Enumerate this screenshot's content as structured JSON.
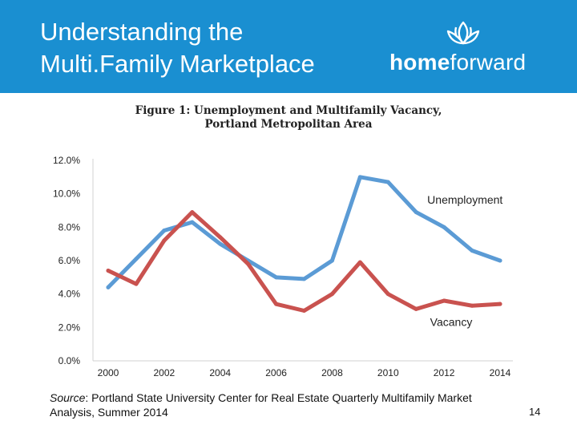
{
  "header": {
    "title_line1": "Understanding the",
    "title_line2": "Multi.Family Marketplace",
    "logo": {
      "word_bold": "home",
      "word_light": "forward",
      "icon": "lotus-flower-icon"
    }
  },
  "figure": {
    "title_line1": "Figure 1: Unemployment and Multifamily Vacancy,",
    "title_line2": "Portland Metropolitan Area"
  },
  "chart_data": {
    "type": "line",
    "x": [
      2000,
      2001,
      2002,
      2003,
      2004,
      2005,
      2006,
      2007,
      2008,
      2009,
      2010,
      2011,
      2012,
      2013,
      2014
    ],
    "series": [
      {
        "name": "Unemployment",
        "color": "#5b9bd5",
        "values": [
          4.4,
          6.1,
          7.8,
          8.3,
          7.0,
          6.0,
          5.0,
          4.9,
          6.0,
          11.0,
          10.7,
          8.9,
          8.0,
          6.6,
          6.0
        ]
      },
      {
        "name": "Vacancy",
        "color": "#c9524f",
        "values": [
          5.4,
          4.6,
          7.2,
          8.9,
          7.4,
          5.8,
          3.4,
          3.0,
          4.0,
          5.9,
          4.0,
          3.1,
          3.6,
          3.3,
          3.4
        ]
      }
    ],
    "ylim": [
      0,
      12
    ],
    "yticks": [
      "0.0%",
      "2.0%",
      "4.0%",
      "6.0%",
      "8.0%",
      "10.0%",
      "12.0%"
    ],
    "xticks": [
      "2000",
      "2002",
      "2004",
      "2006",
      "2008",
      "2010",
      "2012",
      "2014"
    ],
    "grid": false,
    "legend": "inline labels"
  },
  "footer": {
    "source_label": "Source",
    "source_text": ": Portland State University Center for Real Estate Quarterly Multifamily Market Analysis, Summer 2014",
    "page_number": "14"
  }
}
